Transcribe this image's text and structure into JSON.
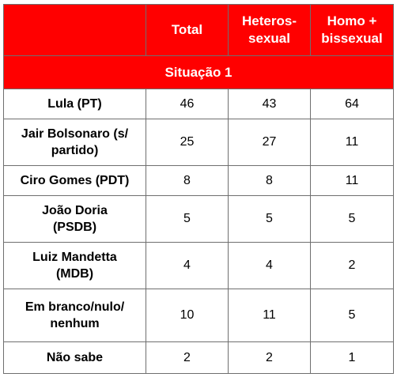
{
  "chart_data": {
    "type": "table",
    "columns": [
      "",
      "Total",
      "Heteros-sexual",
      "Homo + bissexual"
    ],
    "section": "Situação 1",
    "rows": [
      {
        "label": "Lula (PT)",
        "values": [
          46,
          43,
          64
        ]
      },
      {
        "label": "Jair Bolsonaro (s/ partido)",
        "values": [
          25,
          27,
          11
        ]
      },
      {
        "label": "Ciro Gomes (PDT)",
        "values": [
          8,
          8,
          11
        ]
      },
      {
        "label": "João Doria (PSDB)",
        "values": [
          5,
          5,
          5
        ]
      },
      {
        "label": "Luiz Mandetta (MDB)",
        "values": [
          4,
          4,
          2
        ]
      },
      {
        "label": "Em branco/nulo/ nenhum",
        "values": [
          10,
          11,
          5
        ]
      },
      {
        "label": "Não sabe",
        "values": [
          2,
          2,
          1
        ]
      }
    ]
  },
  "header": {
    "total": "Total",
    "hetero_line1": "Heteros-",
    "hetero_line2": "sexual",
    "homo_line1": "Homo +",
    "homo_line2": "bissexual"
  },
  "colors": {
    "header_bg": "#ff0000",
    "header_text": "#ffffff",
    "border": "#6f6f6f"
  }
}
